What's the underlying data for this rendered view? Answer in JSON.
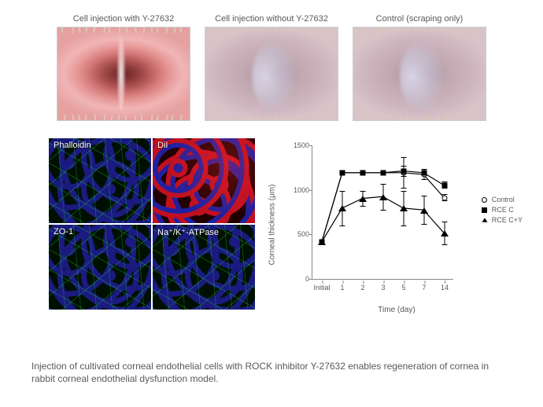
{
  "topPanels": [
    {
      "label": "Cell injection with Y-27632",
      "variant": "clear"
    },
    {
      "label": "Cell injection without Y-27632",
      "variant": "cloudy"
    },
    {
      "label": "Control (scraping only)",
      "variant": "cloudy"
    }
  ],
  "microPanels": {
    "phalloidin": {
      "label": "Phalloidin",
      "style": "green"
    },
    "dil": {
      "label": "DiI",
      "style": "red"
    },
    "zo1": {
      "label": "ZO-1",
      "style": "green"
    },
    "atpase": {
      "label": "Na⁺/K⁺-ATPase",
      "style": "green"
    }
  },
  "chart": {
    "type": "line",
    "ylabel": "Corneal thickness (μm)",
    "xlabel": "Time (day)",
    "ylim": [
      0,
      1500
    ],
    "yticks": [
      0,
      500,
      1000,
      1500
    ],
    "xcategories": [
      "Initial",
      "1",
      "2",
      "3",
      "5",
      "7",
      "14"
    ],
    "axis_color": "#888888",
    "text_color": "#595959",
    "tick_fontsize": 9,
    "label_fontsize": 10,
    "line_color": "#000000",
    "series": [
      {
        "name": "Control",
        "marker": "circle",
        "y": [
          420,
          1200,
          1200,
          1200,
          1200,
          1180,
          920
        ],
        "err": [
          0,
          30,
          30,
          30,
          180,
          60,
          40
        ]
      },
      {
        "name": "RCEC",
        "marker": "square",
        "y": [
          420,
          1200,
          1200,
          1200,
          1220,
          1200,
          1060
        ],
        "err": [
          0,
          0,
          0,
          0,
          60,
          30,
          40
        ]
      },
      {
        "name": "RCEC+Y",
        "marker": "triangle",
        "y": [
          420,
          800,
          910,
          930,
          800,
          780,
          520
        ],
        "err": [
          0,
          200,
          90,
          150,
          200,
          160,
          130
        ]
      }
    ],
    "legend": [
      {
        "label": "Control",
        "marker": "circle"
      },
      {
        "label": "RCE C",
        "marker": "square"
      },
      {
        "label": "RCE C+Y",
        "marker": "triangle"
      }
    ]
  },
  "caption": "Injection of cultivated corneal endothelial cells with ROCK inhibitor Y-27632 enables regeneration of cornea in rabbit corneal endothelial dysfunction model."
}
